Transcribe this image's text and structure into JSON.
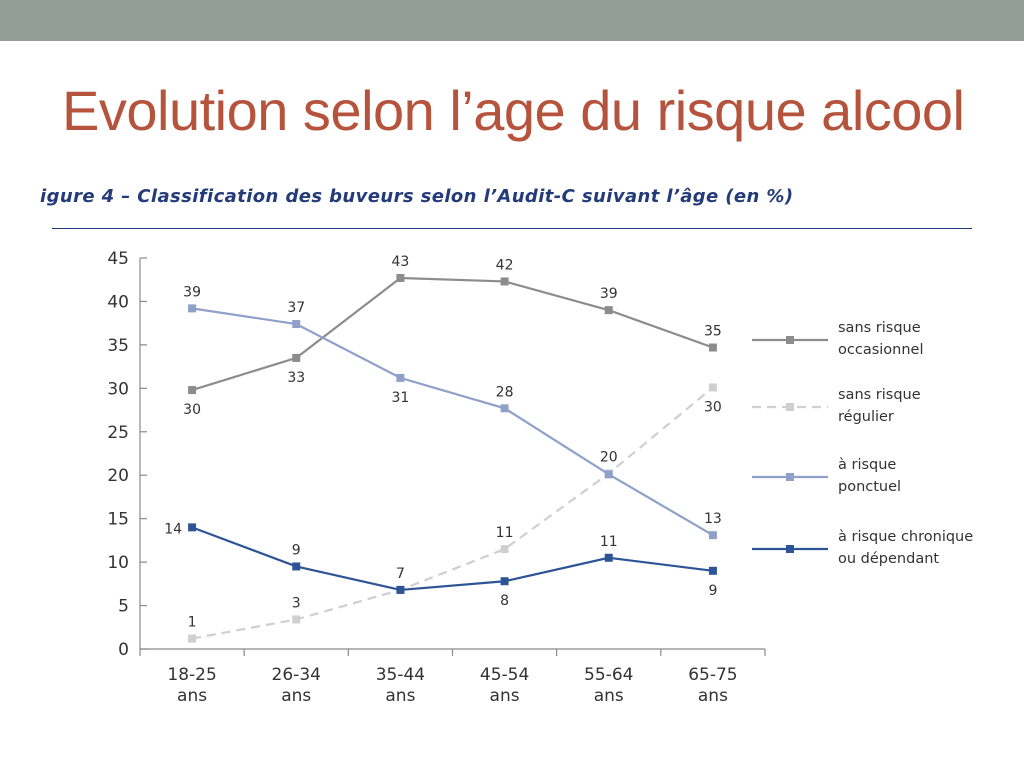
{
  "slide": {
    "title": "Evolution selon l’age du risque alcool",
    "caption": "igure 4 – Classification des buveurs selon l’Audit-C suivant l’âge (en %)"
  },
  "colors": {
    "top_band": "#939e98",
    "title": "#b5533c",
    "caption": "#243b7a"
  },
  "chart_data": {
    "type": "line",
    "title": "",
    "xlabel": "",
    "ylabel": "",
    "ylim": [
      0,
      45
    ],
    "yticks": [
      0,
      5,
      10,
      15,
      20,
      25,
      30,
      35,
      40,
      45
    ],
    "categories": [
      [
        "18-25",
        "ans"
      ],
      [
        "26-34",
        "ans"
      ],
      [
        "35-44",
        "ans"
      ],
      [
        "45-54",
        "ans"
      ],
      [
        "55-64",
        "ans"
      ],
      [
        "65-75",
        "ans"
      ]
    ],
    "grid": false,
    "legend_position": "right",
    "series": [
      {
        "name": "sans risque occasionnel",
        "legend_lines": [
          "sans risque",
          "occasionnel"
        ],
        "color": "#8c8c8c",
        "dashed": false,
        "values": [
          29.8,
          33.5,
          42.7,
          42.3,
          39.0,
          34.7
        ],
        "labels": [
          "30",
          "33",
          "43",
          "42",
          "39",
          "35"
        ],
        "label_pos": [
          "below",
          "below",
          "above",
          "above",
          "above",
          "above"
        ]
      },
      {
        "name": "sans risque régulier",
        "legend_lines": [
          "sans risque",
          "régulier"
        ],
        "color": "#cfcfcf",
        "dashed": true,
        "values": [
          1.2,
          3.4,
          6.8,
          11.5,
          20.2,
          30.1
        ],
        "labels": [
          "1",
          "3",
          "7",
          "11",
          "20",
          "30"
        ],
        "label_pos": [
          "above",
          "above",
          "above",
          "above",
          "above",
          "below"
        ]
      },
      {
        "name": "à risque ponctuel",
        "legend_lines": [
          "à risque",
          "ponctuel"
        ],
        "color": "#8fa0c9",
        "dashed": false,
        "values": [
          39.2,
          37.4,
          31.2,
          27.7,
          20.1,
          13.1
        ],
        "labels": [
          "39",
          "37",
          "31",
          "28",
          "",
          "13"
        ],
        "label_pos": [
          "above",
          "above",
          "below",
          "above",
          "above",
          "above"
        ]
      },
      {
        "name": "à risque chronique ou dépendant",
        "legend_lines": [
          "à risque chronique",
          "ou dépendant"
        ],
        "color": "#2d5496",
        "dashed": false,
        "values": [
          14.0,
          9.5,
          6.8,
          7.8,
          10.5,
          9.0
        ],
        "labels": [
          "14",
          "9",
          "",
          "8",
          "11",
          "9"
        ],
        "label_pos": [
          "left",
          "above",
          "above",
          "below",
          "above",
          "below"
        ]
      }
    ]
  }
}
